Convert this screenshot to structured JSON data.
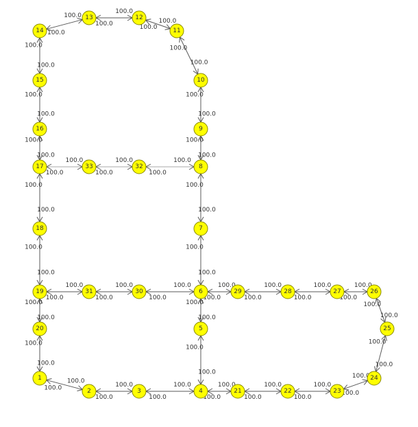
{
  "colors": {
    "node_fill": "#ffff00",
    "node_stroke": "#8a8a00",
    "edge": "#5a5a5a",
    "edge_light": "#a8a8a8",
    "text": "#333333"
  },
  "nodes": [
    {
      "id": "1"
    },
    {
      "id": "2"
    },
    {
      "id": "3"
    },
    {
      "id": "4"
    },
    {
      "id": "5"
    },
    {
      "id": "6"
    },
    {
      "id": "7"
    },
    {
      "id": "8"
    },
    {
      "id": "9"
    },
    {
      "id": "10"
    },
    {
      "id": "11"
    },
    {
      "id": "12"
    },
    {
      "id": "13"
    },
    {
      "id": "14"
    },
    {
      "id": "15"
    },
    {
      "id": "16"
    },
    {
      "id": "17"
    },
    {
      "id": "18"
    },
    {
      "id": "19"
    },
    {
      "id": "20"
    },
    {
      "id": "21"
    },
    {
      "id": "22"
    },
    {
      "id": "23"
    },
    {
      "id": "24"
    },
    {
      "id": "25"
    },
    {
      "id": "26"
    },
    {
      "id": "27"
    },
    {
      "id": "28"
    },
    {
      "id": "29"
    },
    {
      "id": "30"
    },
    {
      "id": "31"
    },
    {
      "id": "32"
    },
    {
      "id": "33"
    }
  ],
  "edges": [
    {
      "from": "1",
      "to": "2",
      "w1": "100.0",
      "w2": "100.0"
    },
    {
      "from": "2",
      "to": "3",
      "w1": "100.0",
      "w2": "100.0"
    },
    {
      "from": "3",
      "to": "4",
      "w1": "100.0",
      "w2": "100.0"
    },
    {
      "from": "4",
      "to": "21",
      "w1": "100.0",
      "w2": "100.0"
    },
    {
      "from": "21",
      "to": "22",
      "w1": "100.0",
      "w2": "100.0"
    },
    {
      "from": "22",
      "to": "23",
      "w1": "100.0",
      "w2": "100.0"
    },
    {
      "from": "23",
      "to": "24",
      "w1": "100.0",
      "w2": "100.0"
    },
    {
      "from": "24",
      "to": "25",
      "w1": "100.0",
      "w2": "100.0"
    },
    {
      "from": "25",
      "to": "26",
      "w1": "100.0",
      "w2": "100.0"
    },
    {
      "from": "26",
      "to": "27",
      "w1": "100.0",
      "w2": "100.0"
    },
    {
      "from": "27",
      "to": "28",
      "w1": "100.0",
      "w2": "100.0"
    },
    {
      "from": "28",
      "to": "29",
      "w1": "100.0",
      "w2": "100.0"
    },
    {
      "from": "29",
      "to": "6",
      "w1": "100.0",
      "w2": "100.0"
    },
    {
      "from": "4",
      "to": "5",
      "w1": "100.0",
      "w2": "100.0"
    },
    {
      "from": "5",
      "to": "6",
      "w1": "100.0",
      "w2": "100.0"
    },
    {
      "from": "6",
      "to": "7",
      "w1": "100.0",
      "w2": "100.0"
    },
    {
      "from": "7",
      "to": "8",
      "w1": "100.0",
      "w2": "100.0"
    },
    {
      "from": "8",
      "to": "9",
      "w1": "100.0",
      "w2": "100.0"
    },
    {
      "from": "9",
      "to": "10",
      "w1": "100.0",
      "w2": "100.0"
    },
    {
      "from": "10",
      "to": "11",
      "w1": "100.0",
      "w2": "100.0"
    },
    {
      "from": "11",
      "to": "12",
      "w1": "100.0",
      "w2": "100.0"
    },
    {
      "from": "12",
      "to": "13",
      "w1": "100.0",
      "w2": "100.0"
    },
    {
      "from": "13",
      "to": "14",
      "w1": "100.0",
      "w2": "100.0"
    },
    {
      "from": "14",
      "to": "15",
      "w1": "100.0",
      "w2": "100.0"
    },
    {
      "from": "15",
      "to": "16",
      "w1": "100.0",
      "w2": "100.0"
    },
    {
      "from": "16",
      "to": "17",
      "w1": "100.0",
      "w2": "100.0"
    },
    {
      "from": "17",
      "to": "18",
      "w1": "100.0",
      "w2": "100.0"
    },
    {
      "from": "18",
      "to": "19",
      "w1": "100.0",
      "w2": "100.0"
    },
    {
      "from": "19",
      "to": "20",
      "w1": "100.0",
      "w2": "100.0"
    },
    {
      "from": "20",
      "to": "1",
      "w1": "100.0",
      "w2": "100.0"
    },
    {
      "from": "19",
      "to": "31",
      "w1": "100.0",
      "w2": "100.0"
    },
    {
      "from": "31",
      "to": "30",
      "w1": "100.0",
      "w2": "100.0"
    },
    {
      "from": "30",
      "to": "6",
      "w1": "100.0",
      "w2": "100.0"
    },
    {
      "from": "17",
      "to": "33",
      "w1": "100.0",
      "w2": "100.0",
      "light": true
    },
    {
      "from": "33",
      "to": "32",
      "w1": "100.0",
      "w2": "100.0",
      "light": true
    },
    {
      "from": "32",
      "to": "8",
      "w1": "100.0",
      "w2": "100.0",
      "light": true
    }
  ]
}
